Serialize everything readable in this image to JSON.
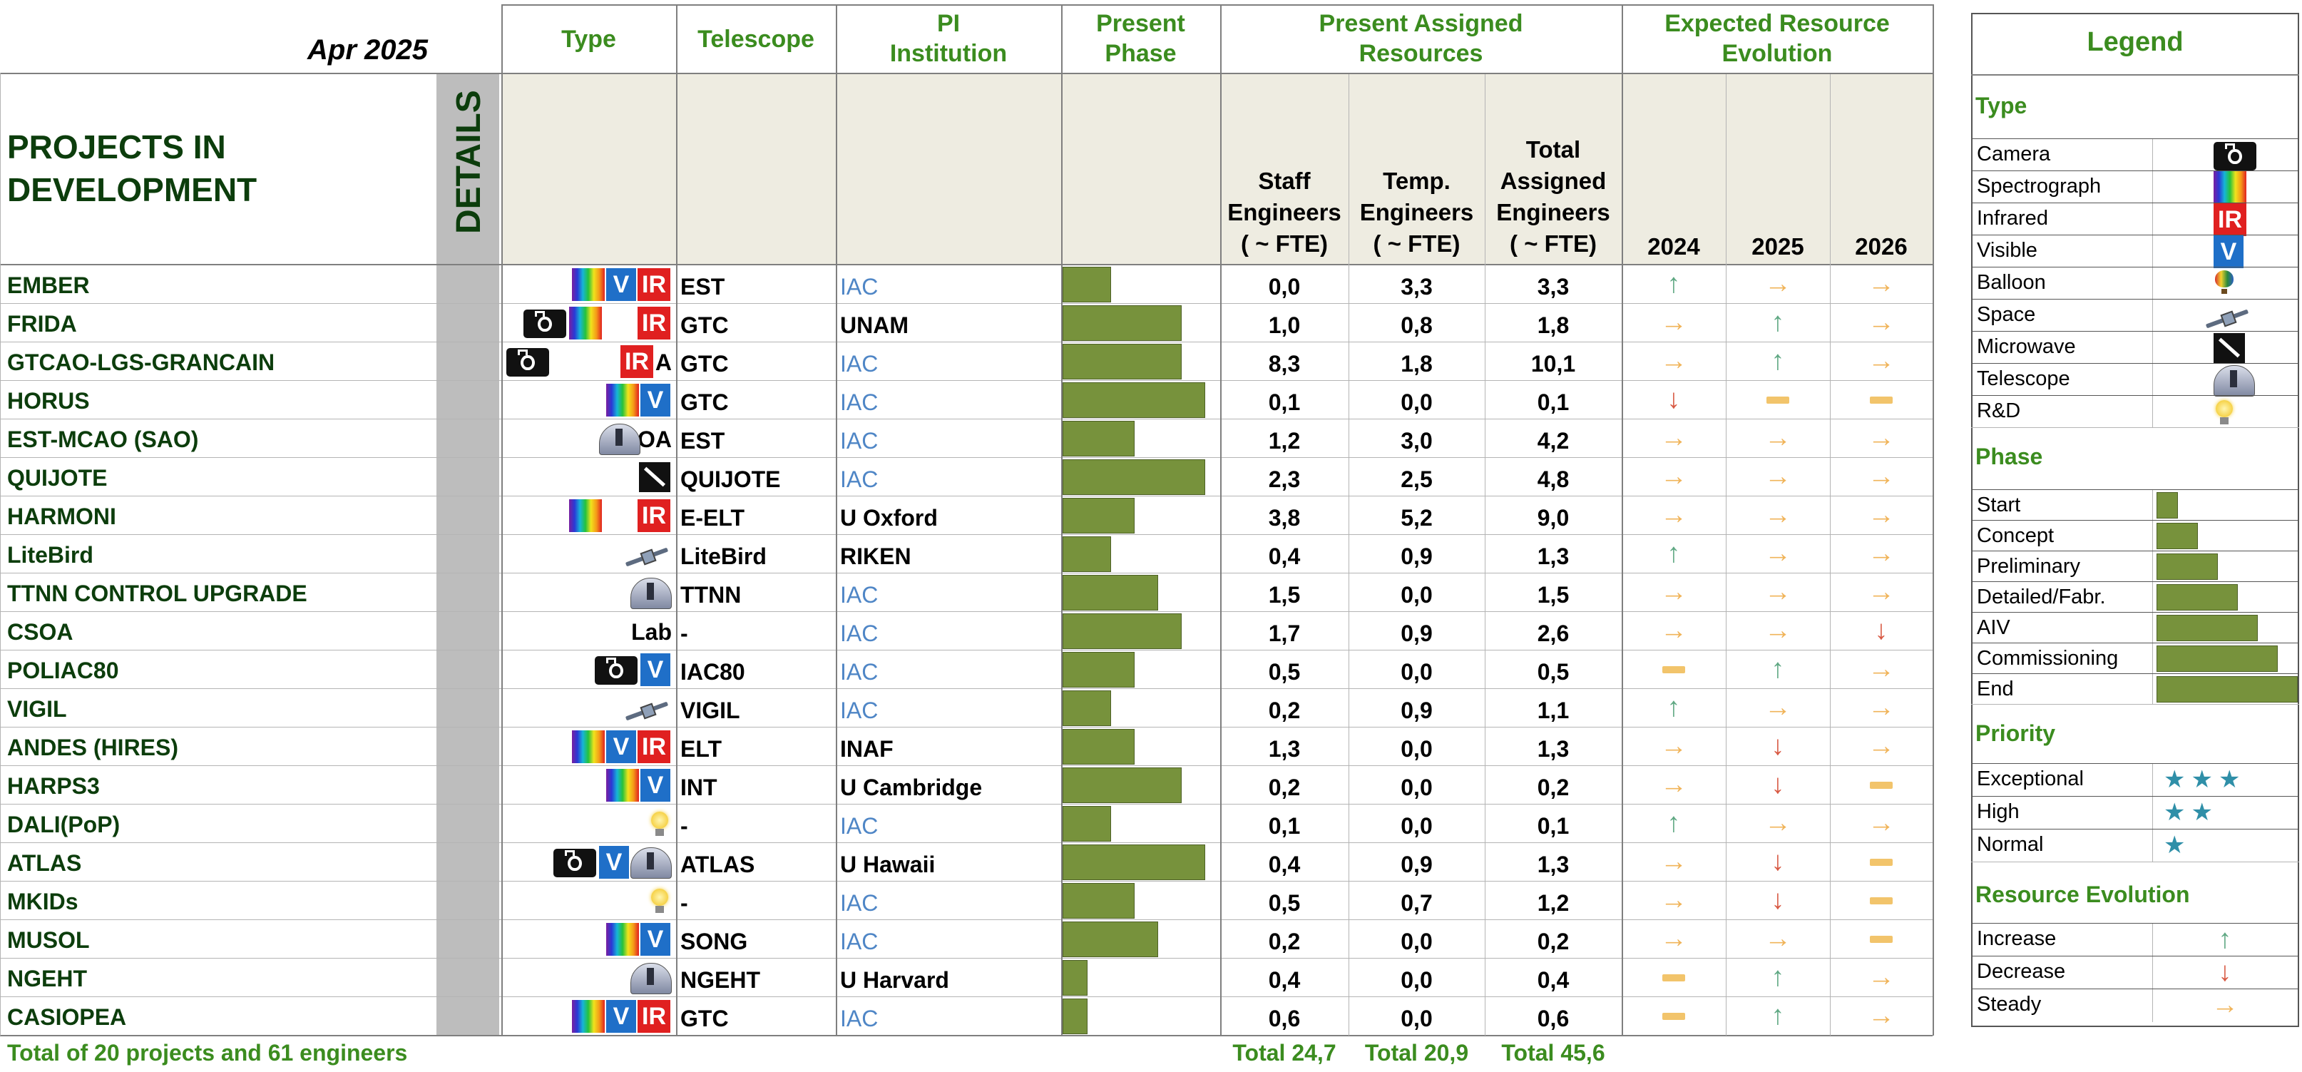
{
  "header": {
    "date": "Apr 2025",
    "section_title": "PROJECTS IN DEVELOPMENT",
    "details_label": "DETAILS",
    "col_type": "Type",
    "col_telescope": "Telescope",
    "col_pi": [
      "PI",
      "Institution"
    ],
    "col_phase": [
      "Present",
      "Phase"
    ],
    "col_resources": [
      "Present Assigned",
      "Resources"
    ],
    "col_evolution": [
      "Expected Resource",
      "Evolution"
    ],
    "sub_staff": [
      "Staff",
      "Engineers",
      "( ~ FTE)"
    ],
    "sub_temp": [
      "Temp.",
      "Engineers",
      "( ~ FTE)"
    ],
    "sub_total": [
      "Total",
      "Assigned",
      "Engineers",
      "( ~ FTE)"
    ],
    "years": [
      "2024",
      "2025",
      "2026"
    ]
  },
  "phase_levels": [
    "Start",
    "Concept",
    "Preliminary",
    "Detailed/Fabr.",
    "AIV",
    "Commissioning",
    "End"
  ],
  "projects": [
    {
      "name": "EMBER",
      "types": [
        "spectrograph",
        "visible",
        "infrared"
      ],
      "suffix": "",
      "telescope": "EST",
      "pi": "IAC",
      "pi_iac": true,
      "phase": 2,
      "staff": "0,0",
      "temp": "3,3",
      "total": "3,3",
      "evo": [
        "increase",
        "steady",
        "steady"
      ]
    },
    {
      "name": "FRIDA",
      "types": [
        "camera",
        "spectrograph",
        "",
        "infrared"
      ],
      "suffix": "",
      "telescope": "GTC",
      "pi": "UNAM",
      "pi_iac": false,
      "phase": 5,
      "staff": "1,0",
      "temp": "0,8",
      "total": "1,8",
      "evo": [
        "steady",
        "increase",
        "steady"
      ]
    },
    {
      "name": "GTCAO-LGS-GRANCAIN",
      "types": [
        "camera",
        "",
        "",
        "infrared"
      ],
      "suffix": "A",
      "telescope": "GTC",
      "pi": "IAC",
      "pi_iac": true,
      "phase": 5,
      "staff": "8,3",
      "temp": "1,8",
      "total": "10,1",
      "evo": [
        "steady",
        "increase",
        "steady"
      ]
    },
    {
      "name": "HORUS",
      "types": [
        "spectrograph",
        "visible"
      ],
      "suffix": "",
      "telescope": "GTC",
      "pi": "IAC",
      "pi_iac": true,
      "phase": 6,
      "staff": "0,1",
      "temp": "0,0",
      "total": "0,1",
      "evo": [
        "decrease",
        "none",
        "none"
      ]
    },
    {
      "name": "EST-MCAO (SAO)",
      "types": [
        "telescope"
      ],
      "suffix": "OA",
      "telescope": "EST",
      "pi": "IAC",
      "pi_iac": true,
      "phase": 3,
      "staff": "1,2",
      "temp": "3,0",
      "total": "4,2",
      "evo": [
        "steady",
        "steady",
        "steady"
      ]
    },
    {
      "name": "QUIJOTE",
      "types": [
        "microwave"
      ],
      "suffix": "",
      "telescope": "QUIJOTE",
      "pi": "IAC",
      "pi_iac": true,
      "phase": 6,
      "staff": "2,3",
      "temp": "2,5",
      "total": "4,8",
      "evo": [
        "steady",
        "steady",
        "steady"
      ]
    },
    {
      "name": "HARMONI",
      "types": [
        "spectrograph",
        "",
        "infrared"
      ],
      "suffix": "",
      "telescope": "E-ELT",
      "pi": "U Oxford",
      "pi_iac": false,
      "phase": 3,
      "staff": "3,8",
      "temp": "5,2",
      "total": "9,0",
      "evo": [
        "steady",
        "steady",
        "steady"
      ]
    },
    {
      "name": "LiteBird",
      "types": [
        "space"
      ],
      "suffix": "",
      "telescope": "LiteBird",
      "pi": "RIKEN",
      "pi_iac": false,
      "phase": 2,
      "staff": "0,4",
      "temp": "0,9",
      "total": "1,3",
      "evo": [
        "increase",
        "steady",
        "steady"
      ]
    },
    {
      "name": "TTNN CONTROL UPGRADE",
      "types": [
        "telescope"
      ],
      "suffix": "",
      "telescope": "TTNN",
      "pi": "IAC",
      "pi_iac": true,
      "phase": 4,
      "staff": "1,5",
      "temp": "0,0",
      "total": "1,5",
      "evo": [
        "steady",
        "steady",
        "steady"
      ]
    },
    {
      "name": "CSOA",
      "types": [],
      "suffix": "Lab",
      "telescope": "-",
      "pi": "IAC",
      "pi_iac": true,
      "phase": 5,
      "staff": "1,7",
      "temp": "0,9",
      "total": "2,6",
      "evo": [
        "steady",
        "steady",
        "decrease"
      ]
    },
    {
      "name": "POLIAC80",
      "types": [
        "camera",
        "visible"
      ],
      "suffix": "",
      "telescope": "IAC80",
      "pi": "IAC",
      "pi_iac": true,
      "phase": 3,
      "staff": "0,5",
      "temp": "0,0",
      "total": "0,5",
      "evo": [
        "none",
        "increase",
        "steady"
      ]
    },
    {
      "name": "VIGIL",
      "types": [
        "space"
      ],
      "suffix": "",
      "telescope": "VIGIL",
      "pi": "IAC",
      "pi_iac": true,
      "phase": 2,
      "staff": "0,2",
      "temp": "0,9",
      "total": "1,1",
      "evo": [
        "increase",
        "steady",
        "steady"
      ]
    },
    {
      "name": "ANDES (HIRES)",
      "types": [
        "spectrograph",
        "visible",
        "infrared"
      ],
      "suffix": "",
      "telescope": "ELT",
      "pi": "INAF",
      "pi_iac": false,
      "phase": 3,
      "staff": "1,3",
      "temp": "0,0",
      "total": "1,3",
      "evo": [
        "steady",
        "decrease",
        "steady"
      ]
    },
    {
      "name": "HARPS3",
      "types": [
        "spectrograph",
        "visible"
      ],
      "suffix": "",
      "telescope": "INT",
      "pi": "U Cambridge",
      "pi_iac": false,
      "phase": 5,
      "staff": "0,2",
      "temp": "0,0",
      "total": "0,2",
      "evo": [
        "steady",
        "decrease",
        "none"
      ]
    },
    {
      "name": "DALI(PoP)",
      "types": [
        "rd"
      ],
      "suffix": "",
      "telescope": "-",
      "pi": "IAC",
      "pi_iac": true,
      "phase": 2,
      "staff": "0,1",
      "temp": "0,0",
      "total": "0,1",
      "evo": [
        "increase",
        "steady",
        "steady"
      ]
    },
    {
      "name": "ATLAS",
      "types": [
        "camera",
        "visible",
        "telescope"
      ],
      "suffix": "",
      "telescope": "ATLAS",
      "pi": "U Hawaii",
      "pi_iac": false,
      "phase": 6,
      "staff": "0,4",
      "temp": "0,9",
      "total": "1,3",
      "evo": [
        "steady",
        "decrease",
        "none"
      ]
    },
    {
      "name": "MKIDs",
      "types": [
        "rd"
      ],
      "suffix": "",
      "telescope": "-",
      "pi": "IAC",
      "pi_iac": true,
      "phase": 3,
      "staff": "0,5",
      "temp": "0,7",
      "total": "1,2",
      "evo": [
        "steady",
        "decrease",
        "none"
      ]
    },
    {
      "name": "MUSOL",
      "types": [
        "spectrograph",
        "visible"
      ],
      "suffix": "",
      "telescope": "SONG",
      "pi": "IAC",
      "pi_iac": true,
      "phase": 4,
      "staff": "0,2",
      "temp": "0,0",
      "total": "0,2",
      "evo": [
        "steady",
        "steady",
        "none"
      ]
    },
    {
      "name": "NGEHT",
      "types": [
        "telescope"
      ],
      "suffix": "",
      "telescope": "NGEHT",
      "pi": "U Harvard",
      "pi_iac": false,
      "phase": 1,
      "staff": "0,4",
      "temp": "0,0",
      "total": "0,4",
      "evo": [
        "none",
        "increase",
        "steady"
      ]
    },
    {
      "name": "CASIOPEA",
      "types": [
        "spectrograph",
        "visible",
        "infrared"
      ],
      "suffix": "",
      "telescope": "GTC",
      "pi": "IAC",
      "pi_iac": true,
      "phase": 1,
      "staff": "0,6",
      "temp": "0,0",
      "total": "0,6",
      "evo": [
        "none",
        "increase",
        "steady"
      ]
    }
  ],
  "footer": {
    "summary": "Total of 20 projects and 61 engineers",
    "total_staff": "Total 24,7",
    "total_temp": "Total 20,9",
    "total_all": "Total 45,6"
  },
  "legend": {
    "title": "Legend",
    "type_title": "Type",
    "types": [
      {
        "label": "Camera",
        "icon": "camera"
      },
      {
        "label": "Spectrograph",
        "icon": "spectrograph"
      },
      {
        "label": "Infrared",
        "icon": "infrared"
      },
      {
        "label": "Visible",
        "icon": "visible"
      },
      {
        "label": "Balloon",
        "icon": "balloon"
      },
      {
        "label": "Space",
        "icon": "space"
      },
      {
        "label": "Microwave",
        "icon": "microwave"
      },
      {
        "label": "Telescope",
        "icon": "telescope"
      },
      {
        "label": "R&D",
        "icon": "rd"
      }
    ],
    "phase_title": "Phase",
    "priority_title": "Priority",
    "priorities": [
      {
        "label": "Exceptional",
        "stars": "★★★"
      },
      {
        "label": "High",
        "stars": "★★"
      },
      {
        "label": "Normal",
        "stars": "★"
      }
    ],
    "evolution_title": "Resource Evolution",
    "evolutions": [
      {
        "label": "Increase",
        "icon": "increase"
      },
      {
        "label": "Decrease",
        "icon": "decrease"
      },
      {
        "label": "Steady",
        "icon": "steady"
      }
    ]
  },
  "colors": {
    "header_green": "#3b8c1f",
    "project_name": "#0c3d0c",
    "phase_bar": "#77923c",
    "iac_blue": "#4f86c6",
    "increase": "#5fa883",
    "decrease": "#d85a44",
    "steady": "#f0b45a"
  }
}
